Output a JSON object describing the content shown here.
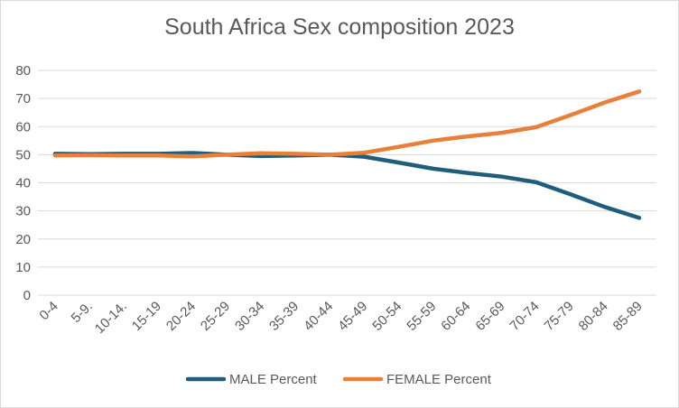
{
  "chart_data": {
    "type": "line",
    "title": "South Africa Sex composition 2023",
    "xlabel": "",
    "ylabel": "",
    "ylim": [
      0,
      80
    ],
    "yticks": [
      0,
      10,
      20,
      30,
      40,
      50,
      60,
      70,
      80
    ],
    "grid": true,
    "legend_position": "bottom",
    "categories": [
      "0-4",
      "5-9.",
      "10-14.",
      "15-19",
      "20-24",
      "25-29",
      "30-34",
      "35-39",
      "40-44",
      "45-49",
      "50-54",
      "55-59",
      "60-64",
      "65-69",
      "70-74",
      "75-79",
      "80-84",
      "85-89"
    ],
    "series": [
      {
        "name": "MALE Percent",
        "color": "#1f5d7a",
        "values": [
          50.3,
          50.2,
          50.3,
          50.3,
          50.6,
          50.0,
          49.5,
          49.7,
          50.0,
          49.3,
          47.2,
          45.0,
          43.5,
          42.2,
          40.2,
          35.9,
          31.4,
          27.5
        ]
      },
      {
        "name": "FEMALE Percent",
        "color": "#e9803a",
        "values": [
          49.7,
          49.8,
          49.7,
          49.7,
          49.4,
          50.0,
          50.5,
          50.3,
          50.0,
          50.7,
          52.8,
          55.0,
          56.5,
          57.8,
          59.8,
          64.1,
          68.6,
          72.5
        ]
      }
    ]
  }
}
